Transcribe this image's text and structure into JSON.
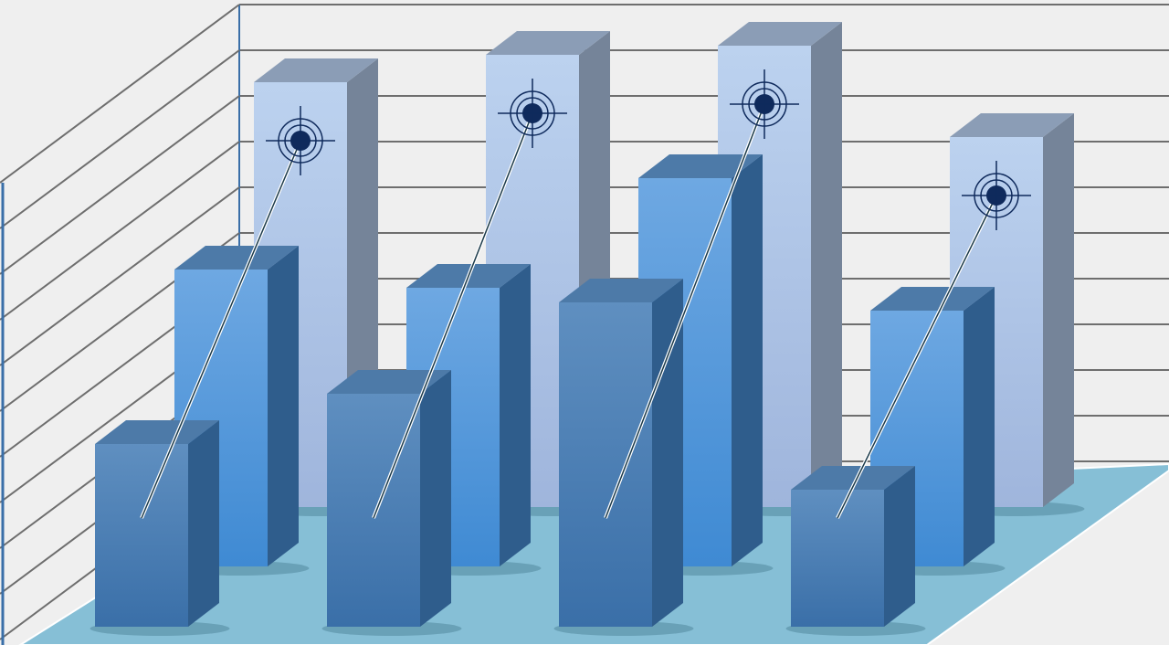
{
  "chart_data": {
    "type": "bar",
    "style": "3d-clustered",
    "title": "",
    "xlabel": "",
    "ylabel": "",
    "categories": [
      "",
      "",
      "",
      ""
    ],
    "ylim": [
      0,
      11
    ],
    "grid": true,
    "legend": "none",
    "series": [
      {
        "values": [
          9.3,
          9.9,
          10.1,
          8.1
        ],
        "color": "#b4cbe8",
        "marker": "crosshair-target"
      },
      {
        "values": [
          6.5,
          6.1,
          8.5,
          5.6
        ],
        "color": "#5b9fe0"
      },
      {
        "values": [
          4.0,
          5.1,
          7.1,
          3.0
        ],
        "color": "#4a82bb"
      }
    ],
    "colors": {
      "background": "#efefef",
      "floor": "#86bfd6",
      "grid": "#6e6e6e",
      "target": "#0f2a5c"
    }
  }
}
